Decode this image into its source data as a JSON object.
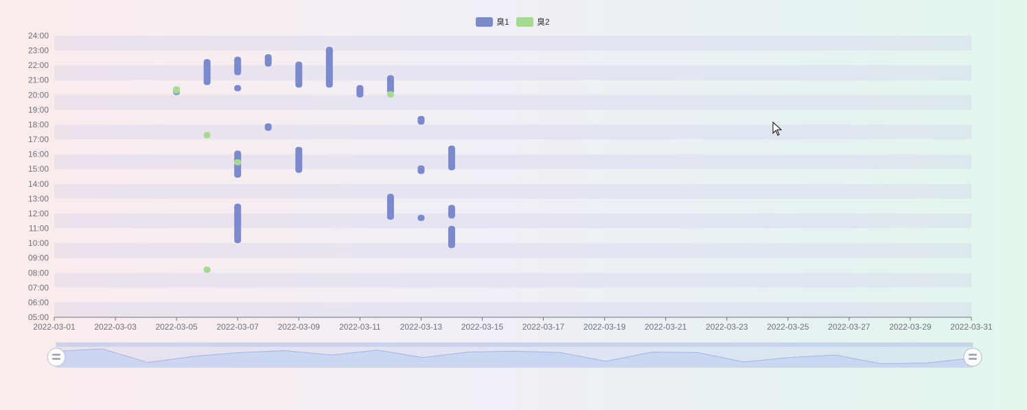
{
  "chart_data": {
    "type": "bar",
    "subtype": "floating-range",
    "legend": {
      "position": "top-center",
      "items": [
        "臭1",
        "臭2"
      ]
    },
    "colors": {
      "臭1": "#7a8acc",
      "臭2": "#a6da90",
      "axis": "#6e7079",
      "stripe_even": "rgba(210,210,235,0.35)",
      "slider_area": "#c3d2f0",
      "slider_line": "#9fb4e6"
    },
    "x": {
      "type": "date",
      "range": [
        "2022-03-01",
        "2022-03-31"
      ],
      "tick_labels": [
        "2022-03-01",
        "2022-03-03",
        "2022-03-05",
        "2022-03-07",
        "2022-03-09",
        "2022-03-11",
        "2022-03-13",
        "2022-03-15",
        "2022-03-17",
        "2022-03-19",
        "2022-03-21",
        "2022-03-23",
        "2022-03-25",
        "2022-03-27",
        "2022-03-29",
        "2022-03-31"
      ]
    },
    "y": {
      "type": "time-of-day",
      "range": [
        "05:00",
        "24:00"
      ],
      "tick_labels": [
        "05:00",
        "06:00",
        "07:00",
        "08:00",
        "09:00",
        "10:00",
        "11:00",
        "12:00",
        "13:00",
        "14:00",
        "15:00",
        "16:00",
        "17:00",
        "18:00",
        "19:00",
        "20:00",
        "21:00",
        "22:00",
        "23:00",
        "24:00"
      ]
    },
    "grid": "alternating horizontal bands",
    "series": [
      {
        "name": "臭1",
        "ranges": [
          {
            "date": "2022-03-05",
            "start": "20:00",
            "end": "20:25"
          },
          {
            "date": "2022-03-06",
            "start": "20:40",
            "end": "22:25"
          },
          {
            "date": "2022-03-07",
            "start": "21:20",
            "end": "22:35"
          },
          {
            "date": "2022-03-07",
            "start": "20:15",
            "end": "20:40"
          },
          {
            "date": "2022-03-07",
            "start": "14:25",
            "end": "16:15"
          },
          {
            "date": "2022-03-07",
            "start": "10:00",
            "end": "12:40"
          },
          {
            "date": "2022-03-08",
            "start": "21:55",
            "end": "22:45"
          },
          {
            "date": "2022-03-08",
            "start": "17:35",
            "end": "18:05"
          },
          {
            "date": "2022-03-09",
            "start": "20:30",
            "end": "22:15"
          },
          {
            "date": "2022-03-09",
            "start": "14:45",
            "end": "16:30"
          },
          {
            "date": "2022-03-10",
            "start": "20:30",
            "end": "23:15"
          },
          {
            "date": "2022-03-11",
            "start": "19:50",
            "end": "20:40"
          },
          {
            "date": "2022-03-12",
            "start": "20:05",
            "end": "21:20"
          },
          {
            "date": "2022-03-12",
            "start": "11:35",
            "end": "13:20"
          },
          {
            "date": "2022-03-13",
            "start": "18:00",
            "end": "18:35"
          },
          {
            "date": "2022-03-13",
            "start": "14:40",
            "end": "15:15"
          },
          {
            "date": "2022-03-13",
            "start": "11:30",
            "end": "11:55"
          },
          {
            "date": "2022-03-14",
            "start": "14:55",
            "end": "16:35"
          },
          {
            "date": "2022-03-14",
            "start": "11:40",
            "end": "12:35"
          },
          {
            "date": "2022-03-14",
            "start": "09:40",
            "end": "11:10"
          }
        ]
      },
      {
        "name": "臭2",
        "ranges": [
          {
            "date": "2022-03-05",
            "start": "20:05",
            "end": "20:35"
          },
          {
            "date": "2022-03-06",
            "start": "17:05",
            "end": "17:30"
          },
          {
            "date": "2022-03-06",
            "start": "08:00",
            "end": "08:25"
          },
          {
            "date": "2022-03-07",
            "start": "15:15",
            "end": "15:40"
          },
          {
            "date": "2022-03-12",
            "start": "19:50",
            "end": "20:15"
          }
        ]
      }
    ],
    "datazoom": {
      "type": "slider",
      "start": "2022-03-01",
      "end": "2022-03-31"
    }
  }
}
